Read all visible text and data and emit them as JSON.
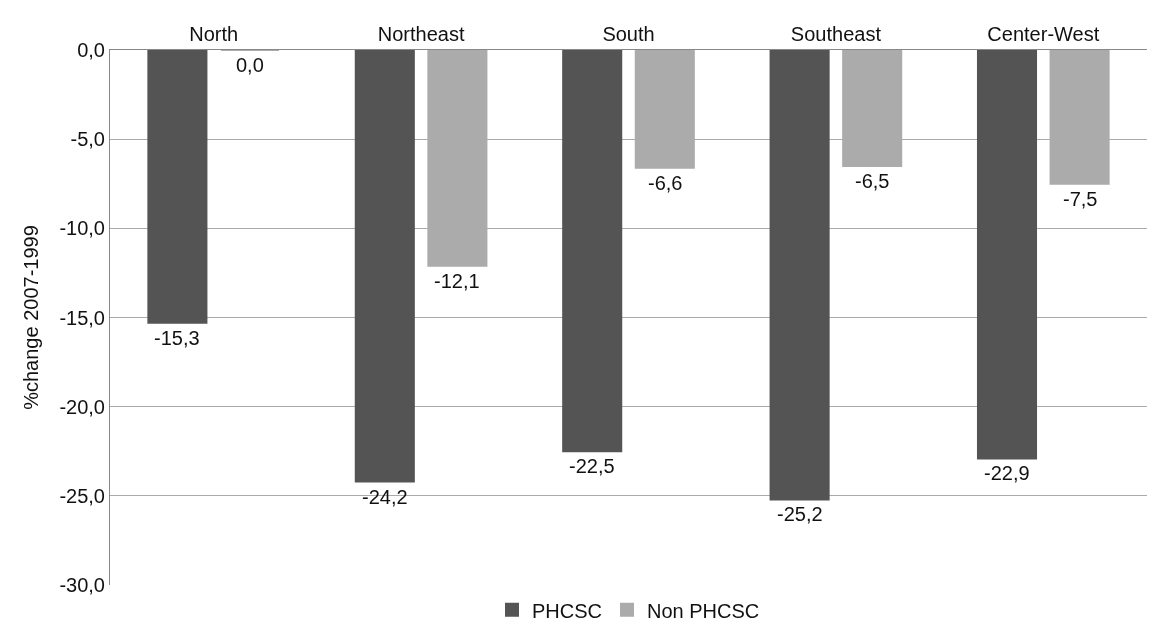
{
  "chart_data": {
    "type": "bar",
    "ylabel": "%change 2007-1999",
    "categories": [
      "North",
      "Northeast",
      "South",
      "Southeast",
      "Center-West"
    ],
    "series": [
      {
        "name": "PHCSC",
        "color": "#545454",
        "values": [
          -15.3,
          -24.2,
          -22.5,
          -25.2,
          -22.9
        ],
        "value_labels": [
          "-15,3",
          "-24,2",
          "-22,5",
          "-25,2",
          "-22,9"
        ]
      },
      {
        "name": "Non PHCSC",
        "color": "#ababab",
        "values": [
          0.0,
          -12.1,
          -6.6,
          -6.5,
          -7.5
        ],
        "value_labels": [
          "0,0",
          "-12,1",
          "-6,6",
          "-6,5",
          "-7,5"
        ]
      }
    ],
    "ylim": [
      -30,
      0
    ],
    "yticks": [
      {
        "value": 0,
        "label": "0,0"
      },
      {
        "value": -5,
        "label": "-5,0"
      },
      {
        "value": -10,
        "label": "-10,0"
      },
      {
        "value": -15,
        "label": "-15,0"
      },
      {
        "value": -20,
        "label": "-20,0"
      },
      {
        "value": -25,
        "label": "-25,0"
      },
      {
        "value": -30,
        "label": "-30,0"
      }
    ],
    "grid": "y",
    "legend": "bottom"
  }
}
